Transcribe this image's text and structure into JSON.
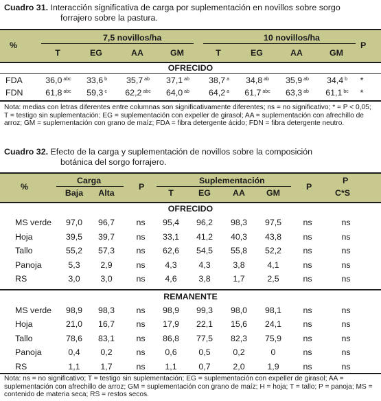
{
  "cuadro31": {
    "number": "Cuadro 31",
    "title_line1": "Interacción significativa de carga por suplementación en novillos sobre sorgo",
    "title_line2": "forrajero sobre la pastura.",
    "header": {
      "pct": "%",
      "group1": "7,5 novillos/ha",
      "group2": "10 novillos/ha",
      "p": "P",
      "cols": [
        "T",
        "EG",
        "AA",
        "GM",
        "T",
        "EG",
        "AA",
        "GM"
      ]
    },
    "section": "OFRECIDO",
    "rows": [
      {
        "label": "FDA",
        "cells": [
          {
            "v": "36,0",
            "s": "abc"
          },
          {
            "v": "33,6",
            "s": "b"
          },
          {
            "v": "35,7",
            "s": "ab"
          },
          {
            "v": "37,1",
            "s": "ab"
          },
          {
            "v": "38,7",
            "s": "a"
          },
          {
            "v": "34,8",
            "s": "ab"
          },
          {
            "v": "35,9",
            "s": "ab"
          },
          {
            "v": "34,4",
            "s": "b"
          }
        ],
        "p": "*"
      },
      {
        "label": "FDN",
        "cells": [
          {
            "v": "61,8",
            "s": "abc"
          },
          {
            "v": "59,3",
            "s": "c"
          },
          {
            "v": "62,2",
            "s": "abc"
          },
          {
            "v": "64,0",
            "s": "ab"
          },
          {
            "v": "64,2",
            "s": "a"
          },
          {
            "v": "61,7",
            "s": "abc"
          },
          {
            "v": "63,3",
            "s": "ab"
          },
          {
            "v": "61,1",
            "s": "bc"
          }
        ],
        "p": "*"
      }
    ],
    "note": "Nota: medias con letras diferentes entre columnas son significativamente diferentes; ns = no significativo; * = P < 0,05; T = testigo sin suplementación; EG = suplementación con expeller de girasol; AA = suplementación con afrechillo de arroz; GM = suplementación con grano de maíz; FDA = fibra detergente ácido; FDN = fibra detergente neutro."
  },
  "cuadro32": {
    "number": "Cuadro 32",
    "title_line1": "Efecto de la carga y suplementación de novillos sobre la composición",
    "title_line2": "botánica del sorgo forrajero.",
    "header": {
      "pct": "%",
      "carga": "Carga",
      "carga_cols": [
        "Baja",
        "Alta"
      ],
      "p1": "P",
      "supl": "Suplementación",
      "supl_cols": [
        "T",
        "EG",
        "AA",
        "GM"
      ],
      "p2": "P",
      "p3_top": "P",
      "p3_bottom": "C*S"
    },
    "sections": [
      {
        "title": "OFRECIDO",
        "rows": [
          [
            "MS verde",
            "97,0",
            "96,7",
            "ns",
            "95,4",
            "96,2",
            "98,3",
            "97,5",
            "ns",
            "ns"
          ],
          [
            "Hoja",
            "39,5",
            "39,7",
            "ns",
            "33,1",
            "41,2",
            "40,3",
            "43,8",
            "ns",
            "ns"
          ],
          [
            "Tallo",
            "55,2",
            "57,3",
            "ns",
            "62,6",
            "54,5",
            "55,8",
            "52,2",
            "ns",
            "ns"
          ],
          [
            "Panoja",
            "5,3",
            "2,9",
            "ns",
            "4,3",
            "4,3",
            "3,8",
            "4,1",
            "ns",
            "ns"
          ],
          [
            "RS",
            "3,0",
            "3,0",
            "ns",
            "4,6",
            "3,8",
            "1,7",
            "2,5",
            "ns",
            "ns"
          ]
        ]
      },
      {
        "title": "REMANENTE",
        "rows": [
          [
            "MS verde",
            "98,9",
            "98,3",
            "ns",
            "98,9",
            "99,3",
            "98,0",
            "98,1",
            "ns",
            "ns"
          ],
          [
            "Hoja",
            "21,0",
            "16,7",
            "ns",
            "17,9",
            "22,1",
            "15,6",
            "24,1",
            "ns",
            "ns"
          ],
          [
            "Tallo",
            "78,6",
            "83,1",
            "ns",
            "86,8",
            "77,5",
            "82,3",
            "75,9",
            "ns",
            "ns"
          ],
          [
            "Panoja",
            "0,4",
            "0,2",
            "ns",
            "0,6",
            "0,5",
            "0,2",
            "0",
            "ns",
            "ns"
          ],
          [
            "RS",
            "1,1",
            "1,7",
            "ns",
            "1,1",
            "0,7",
            "2,0",
            "1,9",
            "ns",
            "ns"
          ]
        ]
      }
    ],
    "note": "Nota: ns = no significativo; T = testigo sin suplementación; EG = suplementación con expeller de girasol; AA = suplementación con afrechillo de arroz; GM = suplementación con grano de maíz; H = hoja; T = tallo; P = panoja; MS = contenido de materia seca; RS = restos secos."
  },
  "colors": {
    "header_band": "#c8c98f",
    "text": "#1a1a1a"
  }
}
